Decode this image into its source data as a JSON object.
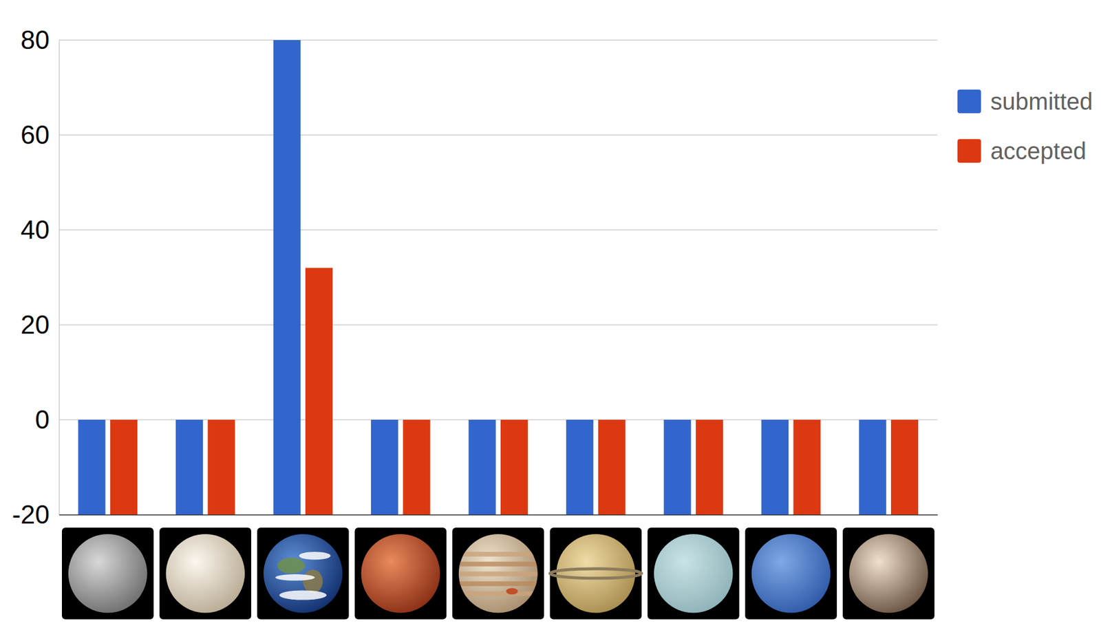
{
  "chart_data": {
    "type": "bar",
    "categories": [
      null,
      null,
      null,
      null,
      null,
      null,
      null,
      null,
      null
    ],
    "series": [
      {
        "name": "submitted",
        "color": "#3366cc",
        "values": [
          0,
          0,
          80,
          0,
          0,
          0,
          0,
          0,
          0
        ]
      },
      {
        "name": "accepted",
        "color": "#dc3912",
        "values": [
          0,
          0,
          32,
          0,
          0,
          0,
          0,
          0,
          0
        ]
      }
    ],
    "ylim": [
      -20,
      80
    ],
    "yticks": [
      -20,
      0,
      20,
      40,
      60,
      80
    ],
    "grid": true,
    "legend": "right"
  }
}
